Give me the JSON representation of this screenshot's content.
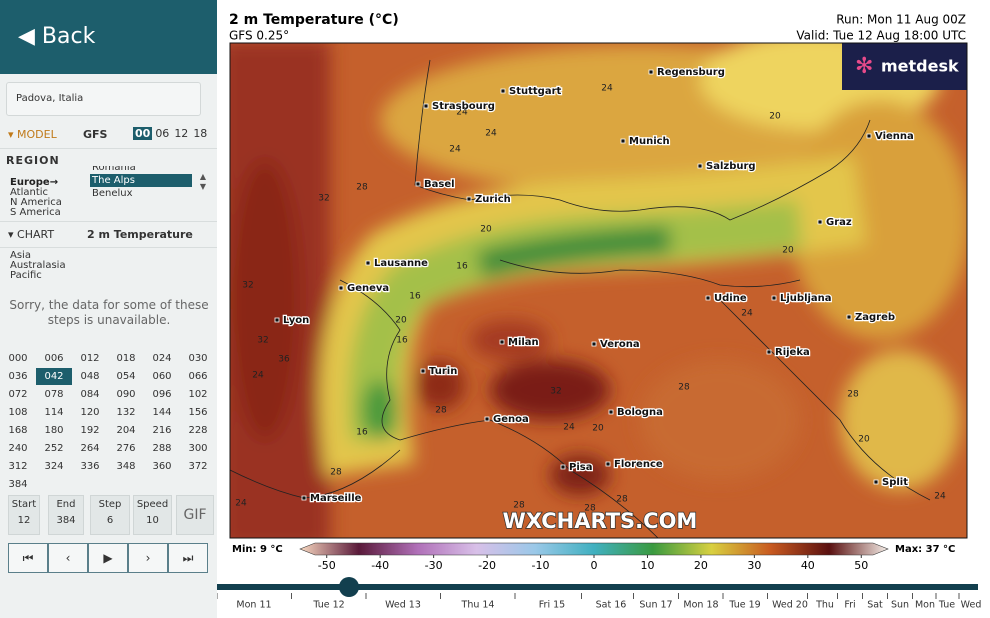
{
  "sidebar": {
    "back": "Back",
    "location": "Padova, Italia",
    "model": {
      "label": "MODEL",
      "name": "GFS",
      "runs": [
        "00",
        "06",
        "12",
        "18"
      ],
      "selected_run": "00"
    },
    "region": {
      "label": "REGION",
      "groups": [
        "Europe→",
        "Atlantic",
        "N America",
        "S America"
      ],
      "options": [
        "Romania",
        "The Alps",
        "Benelux"
      ],
      "selected": "The Alps"
    },
    "chart": {
      "label": "CHART",
      "name": "2 m Temperature"
    },
    "other_groups": [
      "Asia",
      "Australasia",
      "Pacific"
    ],
    "notice": "Sorry, the data for some of these steps is unavailable.",
    "steps": [
      "000",
      "006",
      "012",
      "018",
      "024",
      "030",
      "036",
      "042",
      "048",
      "054",
      "060",
      "066",
      "072",
      "078",
      "084",
      "090",
      "096",
      "102",
      "108",
      "114",
      "120",
      "132",
      "144",
      "156",
      "168",
      "180",
      "192",
      "204",
      "216",
      "228",
      "240",
      "252",
      "264",
      "276",
      "288",
      "300",
      "312",
      "324",
      "336",
      "348",
      "360",
      "372",
      "384"
    ],
    "selected_step": "042",
    "controls": [
      {
        "label": "Start",
        "value": 12
      },
      {
        "label": "End",
        "value": 384
      },
      {
        "label": "Step",
        "value": 6
      },
      {
        "label": "Speed",
        "value": 10
      }
    ],
    "gif": "GIF"
  },
  "map": {
    "title": "2 m Temperature (°C)",
    "subtitle": "GFS 0.25°",
    "run": "Run: Mon 11 Aug 00Z",
    "valid": "Valid: Tue 12 Aug 18:00 UTC",
    "watermark": "WXCHARTS.COM",
    "logo": "metdesk",
    "cities": [
      "Regensburg",
      "Stuttgart",
      "Strasbourg",
      "Munich",
      "Vienna",
      "Salzburg",
      "Basel",
      "Zurich",
      "Graz",
      "Lausanne",
      "Geneva",
      "Udine",
      "Ljubljana",
      "Zagreb",
      "Lyon",
      "Milan",
      "Verona",
      "Rijeka",
      "Turin",
      "Bologna",
      "Genoa",
      "Pisa",
      "Florence",
      "Marseille",
      "Split"
    ],
    "contour_labels": [
      24,
      24,
      24,
      24,
      20,
      32,
      28,
      20,
      32,
      16,
      16,
      20,
      16,
      32,
      36,
      24,
      28,
      32,
      16,
      24,
      20,
      28,
      24,
      20,
      28,
      24,
      28,
      28,
      28,
      20,
      24,
      28
    ]
  },
  "colorbar": {
    "min": "Min: 9 °C",
    "max": "Max: 37 °C",
    "ticks": [
      -50,
      -40,
      -30,
      -20,
      -10,
      0,
      10,
      20,
      30,
      40,
      50
    ],
    "range": [
      -55,
      55
    ]
  },
  "timeline": {
    "days": [
      "Mon 11",
      "Tue 12",
      "Wed 13",
      "Thu 14",
      "Fri 15",
      "Sat 16",
      "Sun 17",
      "Mon 18",
      "Tue 19",
      "Wed 20",
      "Thu",
      "Fri",
      "Sat",
      "Sun",
      "Mon",
      "Tue",
      "Wed"
    ]
  }
}
